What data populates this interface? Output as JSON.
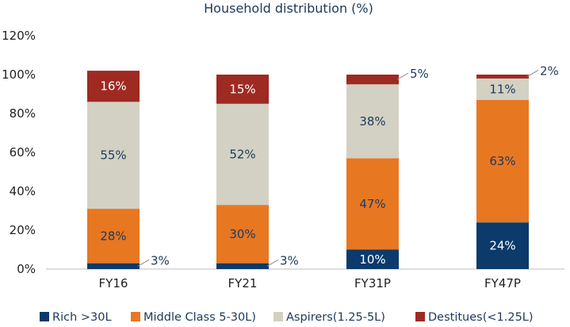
{
  "chart_data": {
    "type": "bar",
    "stacked": true,
    "title": "Household distribution (%)",
    "categories": [
      "FY16",
      "FY21",
      "FY31P",
      "FY47P"
    ],
    "ylim": [
      0,
      120
    ],
    "yticks": [
      "0%",
      "20%",
      "40%",
      "60%",
      "80%",
      "100%",
      "120%"
    ],
    "series": [
      {
        "name": "Rich >30L",
        "color": "#0b3a6b",
        "label_color": "#ffffff",
        "values": [
          3,
          3,
          10,
          24
        ],
        "labels": [
          "3%",
          "3%",
          "10%",
          "24%"
        ]
      },
      {
        "name": "Middle Class 5-30L)",
        "color": "#e87722",
        "label_color": "#1b3a5c",
        "values": [
          28,
          30,
          47,
          63
        ],
        "labels": [
          "28%",
          "30%",
          "47%",
          "63%"
        ]
      },
      {
        "name": "Aspirers(1.25-5L)",
        "color": "#d3d1c3",
        "label_color": "#1b3a5c",
        "values": [
          55,
          52,
          38,
          11
        ],
        "labels": [
          "55%",
          "52%",
          "38%",
          "11%"
        ]
      },
      {
        "name": "Destitues(<1.25L)",
        "color": "#9e2a22",
        "label_color": "#ffffff",
        "values": [
          16,
          15,
          5,
          2
        ],
        "labels": [
          "16%",
          "15%",
          "5%",
          "2%"
        ]
      }
    ],
    "legend_position": "bottom",
    "grid": false
  }
}
